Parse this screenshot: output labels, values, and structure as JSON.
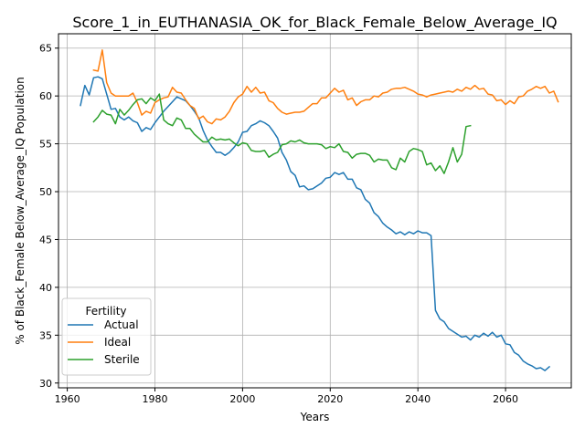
{
  "chart_data": {
    "type": "line",
    "title": "Score_1_in_EUTHANASIA_OK_for_Black_Female_Below_Average_IQ",
    "xlabel": "Years",
    "ylabel": "% of Black_Female Below_Average_IQ Population",
    "xlim": [
      1958,
      2075
    ],
    "ylim": [
      29.5,
      66.5
    ],
    "x_ticks": [
      1960,
      1980,
      2000,
      2020,
      2040,
      2060
    ],
    "y_ticks": [
      30,
      35,
      40,
      45,
      50,
      55,
      60,
      65
    ],
    "grid": true,
    "legend": {
      "title": "Fertility",
      "position": "lower-left"
    },
    "series": [
      {
        "name": "Actual",
        "color": "#1f77b4",
        "points": [
          [
            1963,
            59.0
          ],
          [
            1964,
            61.1
          ],
          [
            1965,
            60.1
          ],
          [
            1966,
            61.9
          ],
          [
            1967,
            62.0
          ],
          [
            1968,
            61.8
          ],
          [
            1969,
            60.2
          ],
          [
            1970,
            58.6
          ],
          [
            1971,
            58.7
          ],
          [
            1972,
            57.8
          ],
          [
            1973,
            57.5
          ],
          [
            1974,
            57.8
          ],
          [
            1975,
            57.4
          ],
          [
            1976,
            57.2
          ],
          [
            1977,
            56.3
          ],
          [
            1978,
            56.7
          ],
          [
            1979,
            56.5
          ],
          [
            1980,
            57.2
          ],
          [
            1981,
            57.8
          ],
          [
            1982,
            58.4
          ],
          [
            1983,
            58.9
          ],
          [
            1984,
            59.4
          ],
          [
            1985,
            59.9
          ],
          [
            1986,
            59.7
          ],
          [
            1987,
            59.5
          ],
          [
            1988,
            59.0
          ],
          [
            1989,
            58.4
          ],
          [
            1990,
            57.7
          ],
          [
            1991,
            56.4
          ],
          [
            1992,
            55.4
          ],
          [
            1993,
            54.7
          ],
          [
            1994,
            54.1
          ],
          [
            1995,
            54.1
          ],
          [
            1996,
            53.8
          ],
          [
            1997,
            54.1
          ],
          [
            1998,
            54.6
          ],
          [
            1999,
            55.2
          ],
          [
            2000,
            56.2
          ],
          [
            2001,
            56.3
          ],
          [
            2002,
            56.9
          ],
          [
            2003,
            57.1
          ],
          [
            2004,
            57.4
          ],
          [
            2005,
            57.2
          ],
          [
            2006,
            56.9
          ],
          [
            2007,
            56.3
          ],
          [
            2008,
            55.6
          ],
          [
            2009,
            54.1
          ],
          [
            2010,
            53.3
          ],
          [
            2011,
            52.1
          ],
          [
            2012,
            51.7
          ],
          [
            2013,
            50.5
          ],
          [
            2014,
            50.6
          ],
          [
            2015,
            50.2
          ],
          [
            2016,
            50.3
          ],
          [
            2017,
            50.6
          ],
          [
            2018,
            50.9
          ],
          [
            2019,
            51.4
          ],
          [
            2020,
            51.5
          ],
          [
            2021,
            52.0
          ],
          [
            2022,
            51.8
          ],
          [
            2023,
            52.0
          ],
          [
            2024,
            51.3
          ],
          [
            2025,
            51.3
          ],
          [
            2026,
            50.4
          ],
          [
            2027,
            50.2
          ],
          [
            2028,
            49.2
          ],
          [
            2029,
            48.8
          ],
          [
            2030,
            47.8
          ],
          [
            2031,
            47.4
          ],
          [
            2032,
            46.7
          ],
          [
            2033,
            46.3
          ],
          [
            2034,
            46.0
          ],
          [
            2035,
            45.6
          ],
          [
            2036,
            45.8
          ],
          [
            2037,
            45.5
          ],
          [
            2038,
            45.8
          ],
          [
            2039,
            45.6
          ],
          [
            2040,
            45.9
          ],
          [
            2041,
            45.7
          ],
          [
            2042,
            45.7
          ],
          [
            2043,
            45.4
          ],
          [
            2044,
            37.6
          ],
          [
            2045,
            36.7
          ],
          [
            2046,
            36.4
          ],
          [
            2047,
            35.7
          ],
          [
            2048,
            35.4
          ],
          [
            2049,
            35.1
          ],
          [
            2050,
            34.8
          ],
          [
            2051,
            34.9
          ],
          [
            2052,
            34.5
          ],
          [
            2053,
            35.0
          ],
          [
            2054,
            34.8
          ],
          [
            2055,
            35.2
          ],
          [
            2056,
            34.9
          ],
          [
            2057,
            35.3
          ],
          [
            2058,
            34.8
          ],
          [
            2059,
            35.0
          ],
          [
            2060,
            34.1
          ],
          [
            2061,
            34.0
          ],
          [
            2062,
            33.2
          ],
          [
            2063,
            32.9
          ],
          [
            2064,
            32.3
          ],
          [
            2065,
            32.0
          ],
          [
            2066,
            31.8
          ],
          [
            2067,
            31.5
          ],
          [
            2068,
            31.6
          ],
          [
            2069,
            31.3
          ],
          [
            2070,
            31.7
          ]
        ]
      },
      {
        "name": "Ideal",
        "color": "#ff7f0e",
        "points": [
          [
            1966,
            62.7
          ],
          [
            1967,
            62.6
          ],
          [
            1968,
            64.8
          ],
          [
            1969,
            61.4
          ],
          [
            1970,
            60.3
          ],
          [
            1971,
            60.0
          ],
          [
            1972,
            60.0
          ],
          [
            1973,
            60.0
          ],
          [
            1974,
            60.0
          ],
          [
            1975,
            60.3
          ],
          [
            1976,
            59.3
          ],
          [
            1977,
            58.0
          ],
          [
            1978,
            58.4
          ],
          [
            1979,
            58.2
          ],
          [
            1980,
            59.3
          ],
          [
            1981,
            59.6
          ],
          [
            1982,
            59.8
          ],
          [
            1983,
            59.9
          ],
          [
            1984,
            60.9
          ],
          [
            1985,
            60.4
          ],
          [
            1986,
            60.3
          ],
          [
            1987,
            59.6
          ],
          [
            1988,
            59.0
          ],
          [
            1989,
            58.7
          ],
          [
            1990,
            57.6
          ],
          [
            1991,
            57.9
          ],
          [
            1992,
            57.3
          ],
          [
            1993,
            57.1
          ],
          [
            1994,
            57.6
          ],
          [
            1995,
            57.5
          ],
          [
            1996,
            57.8
          ],
          [
            1997,
            58.4
          ],
          [
            1998,
            59.3
          ],
          [
            1999,
            59.9
          ],
          [
            2000,
            60.2
          ],
          [
            2001,
            61.0
          ],
          [
            2002,
            60.4
          ],
          [
            2003,
            60.9
          ],
          [
            2004,
            60.3
          ],
          [
            2005,
            60.4
          ],
          [
            2006,
            59.5
          ],
          [
            2007,
            59.3
          ],
          [
            2008,
            58.7
          ],
          [
            2009,
            58.3
          ],
          [
            2010,
            58.1
          ],
          [
            2011,
            58.2
          ],
          [
            2012,
            58.3
          ],
          [
            2013,
            58.3
          ],
          [
            2014,
            58.4
          ],
          [
            2015,
            58.8
          ],
          [
            2016,
            59.2
          ],
          [
            2017,
            59.2
          ],
          [
            2018,
            59.8
          ],
          [
            2019,
            59.8
          ],
          [
            2020,
            60.3
          ],
          [
            2021,
            60.8
          ],
          [
            2022,
            60.4
          ],
          [
            2023,
            60.6
          ],
          [
            2024,
            59.6
          ],
          [
            2025,
            59.8
          ],
          [
            2026,
            59.0
          ],
          [
            2027,
            59.4
          ],
          [
            2028,
            59.6
          ],
          [
            2029,
            59.6
          ],
          [
            2030,
            60.0
          ],
          [
            2031,
            59.9
          ],
          [
            2032,
            60.3
          ],
          [
            2033,
            60.4
          ],
          [
            2034,
            60.7
          ],
          [
            2035,
            60.8
          ],
          [
            2036,
            60.8
          ],
          [
            2037,
            60.9
          ],
          [
            2038,
            60.7
          ],
          [
            2039,
            60.5
          ],
          [
            2040,
            60.2
          ],
          [
            2041,
            60.1
          ],
          [
            2042,
            59.9
          ],
          [
            2043,
            60.1
          ],
          [
            2044,
            60.2
          ],
          [
            2045,
            60.3
          ],
          [
            2046,
            60.4
          ],
          [
            2047,
            60.5
          ],
          [
            2048,
            60.4
          ],
          [
            2049,
            60.7
          ],
          [
            2050,
            60.5
          ],
          [
            2051,
            60.9
          ],
          [
            2052,
            60.7
          ],
          [
            2053,
            61.1
          ],
          [
            2054,
            60.7
          ],
          [
            2055,
            60.8
          ],
          [
            2056,
            60.2
          ],
          [
            2057,
            60.1
          ],
          [
            2058,
            59.5
          ],
          [
            2059,
            59.6
          ],
          [
            2060,
            59.1
          ],
          [
            2061,
            59.5
          ],
          [
            2062,
            59.2
          ],
          [
            2063,
            59.9
          ],
          [
            2064,
            60.0
          ],
          [
            2065,
            60.5
          ],
          [
            2066,
            60.7
          ],
          [
            2067,
            61.0
          ],
          [
            2068,
            60.8
          ],
          [
            2069,
            61.0
          ],
          [
            2070,
            60.3
          ],
          [
            2071,
            60.5
          ],
          [
            2072,
            59.4
          ]
        ]
      },
      {
        "name": "Sterile",
        "color": "#2ca02c",
        "points": [
          [
            1966,
            57.3
          ],
          [
            1967,
            57.8
          ],
          [
            1968,
            58.5
          ],
          [
            1969,
            58.1
          ],
          [
            1970,
            58.0
          ],
          [
            1971,
            57.1
          ],
          [
            1972,
            58.6
          ],
          [
            1973,
            58.0
          ],
          [
            1974,
            58.5
          ],
          [
            1975,
            59.1
          ],
          [
            1976,
            59.6
          ],
          [
            1977,
            59.7
          ],
          [
            1978,
            59.2
          ],
          [
            1979,
            59.8
          ],
          [
            1980,
            59.5
          ],
          [
            1981,
            60.2
          ],
          [
            1982,
            57.5
          ],
          [
            1983,
            57.1
          ],
          [
            1984,
            56.9
          ],
          [
            1985,
            57.7
          ],
          [
            1986,
            57.5
          ],
          [
            1987,
            56.6
          ],
          [
            1988,
            56.6
          ],
          [
            1989,
            56.0
          ],
          [
            1990,
            55.6
          ],
          [
            1991,
            55.2
          ],
          [
            1992,
            55.2
          ],
          [
            1993,
            55.7
          ],
          [
            1994,
            55.4
          ],
          [
            1995,
            55.5
          ],
          [
            1996,
            55.4
          ],
          [
            1997,
            55.5
          ],
          [
            1998,
            55.1
          ],
          [
            1999,
            54.8
          ],
          [
            2000,
            55.1
          ],
          [
            2001,
            55.0
          ],
          [
            2002,
            54.3
          ],
          [
            2003,
            54.2
          ],
          [
            2004,
            54.2
          ],
          [
            2005,
            54.3
          ],
          [
            2006,
            53.6
          ],
          [
            2007,
            53.9
          ],
          [
            2008,
            54.1
          ],
          [
            2009,
            54.9
          ],
          [
            2010,
            55.0
          ],
          [
            2011,
            55.3
          ],
          [
            2012,
            55.2
          ],
          [
            2013,
            55.4
          ],
          [
            2014,
            55.1
          ],
          [
            2015,
            55.0
          ],
          [
            2016,
            55.0
          ],
          [
            2017,
            55.0
          ],
          [
            2018,
            54.9
          ],
          [
            2019,
            54.5
          ],
          [
            2020,
            54.7
          ],
          [
            2021,
            54.6
          ],
          [
            2022,
            55.0
          ],
          [
            2023,
            54.2
          ],
          [
            2024,
            54.1
          ],
          [
            2025,
            53.5
          ],
          [
            2026,
            53.9
          ],
          [
            2027,
            54.0
          ],
          [
            2028,
            54.0
          ],
          [
            2029,
            53.8
          ],
          [
            2030,
            53.1
          ],
          [
            2031,
            53.4
          ],
          [
            2032,
            53.3
          ],
          [
            2033,
            53.3
          ],
          [
            2034,
            52.5
          ],
          [
            2035,
            52.3
          ],
          [
            2036,
            53.5
          ],
          [
            2037,
            53.1
          ],
          [
            2038,
            54.2
          ],
          [
            2039,
            54.5
          ],
          [
            2040,
            54.4
          ],
          [
            2041,
            54.2
          ],
          [
            2042,
            52.8
          ],
          [
            2043,
            53.0
          ],
          [
            2044,
            52.2
          ],
          [
            2045,
            52.7
          ],
          [
            2046,
            51.9
          ],
          [
            2047,
            53.1
          ],
          [
            2048,
            54.6
          ],
          [
            2049,
            53.1
          ],
          [
            2050,
            53.9
          ],
          [
            2051,
            56.8
          ],
          [
            2052,
            56.9
          ]
        ]
      }
    ]
  }
}
